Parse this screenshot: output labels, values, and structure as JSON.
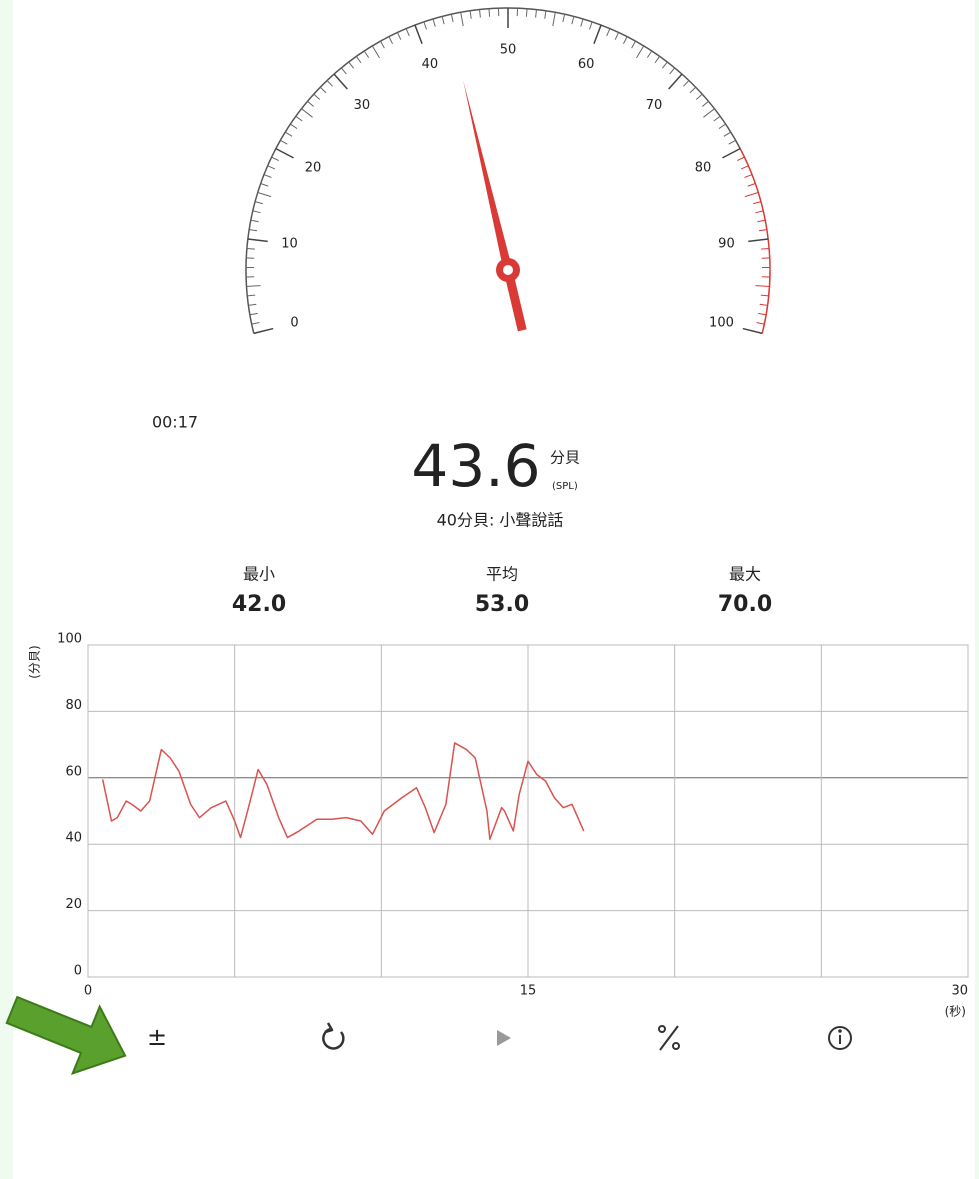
{
  "timer": "00:17",
  "reading": {
    "value": 43.6,
    "unit": "分貝",
    "unit_sub": "(SPL)",
    "description": "40分貝: 小聲說話"
  },
  "gauge": {
    "type": "gauge",
    "value": 43.6,
    "lim": [
      0,
      100
    ],
    "ticks": [
      0,
      10,
      20,
      30,
      40,
      50,
      60,
      70,
      80,
      90,
      100
    ],
    "red_range": [
      80,
      100
    ],
    "needle_color": "#d93a35"
  },
  "stats": [
    {
      "label": "最小",
      "value": "42.0"
    },
    {
      "label": "平均",
      "value": "53.0"
    },
    {
      "label": "最大",
      "value": "70.0"
    }
  ],
  "chart_data": {
    "type": "line",
    "ylabel": "(分貝)",
    "xlabel": "(秒)",
    "xlim": [
      0,
      30
    ],
    "ylim": [
      0,
      100
    ],
    "xticks": [
      0,
      15,
      30
    ],
    "yticks": [
      0,
      20,
      40,
      60,
      80,
      100
    ],
    "x_grid": [
      5,
      10,
      20,
      25
    ],
    "grid": true,
    "x": [
      0.5,
      0.8,
      1.0,
      1.3,
      1.5,
      1.8,
      2.1,
      2.5,
      2.8,
      3.1,
      3.5,
      3.8,
      4.2,
      4.7,
      5.0,
      5.2,
      5.5,
      5.8,
      6.1,
      6.5,
      6.8,
      7.2,
      7.8,
      8.3,
      8.8,
      9.3,
      9.7,
      10.1,
      10.7,
      11.2,
      11.5,
      11.8,
      12.2,
      12.5,
      12.9,
      13.2,
      13.6,
      13.7,
      14.1,
      14.2,
      14.5,
      14.7,
      15.0,
      15.3,
      15.6,
      15.9,
      16.2,
      16.5,
      16.9
    ],
    "series": [
      {
        "color": "#d9534f",
        "values": [
          59.5,
          47,
          48,
          53,
          52,
          50,
          53,
          68.5,
          66,
          62,
          52,
          48,
          51,
          53,
          47,
          42,
          52,
          62.5,
          58,
          48,
          42,
          44,
          47.5,
          47.5,
          48,
          47,
          43,
          50,
          54,
          57,
          51,
          43.5,
          52,
          70.5,
          68.5,
          66,
          50,
          41.5,
          51,
          50,
          44,
          55,
          65,
          61,
          59,
          54,
          51,
          52,
          44
        ]
      }
    ]
  },
  "toolbar": [
    "±"
  ]
}
